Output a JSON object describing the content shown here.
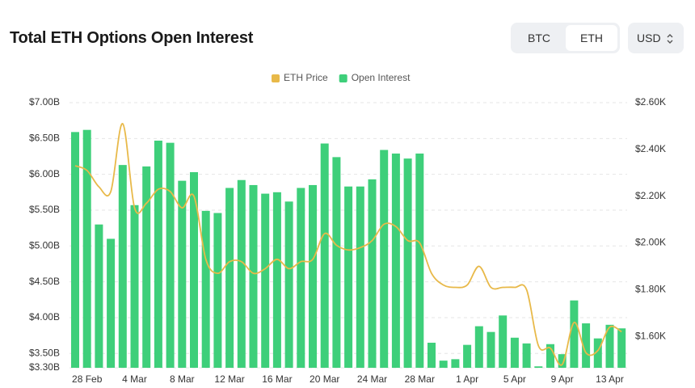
{
  "controls": {
    "assets": [
      "BTC",
      "ETH"
    ],
    "currency": "USD"
  },
  "chart_data": {
    "type": "combo",
    "title": "Total ETH Options Open Interest",
    "categories": [
      null,
      "28 Feb",
      null,
      null,
      null,
      "4 Mar",
      null,
      null,
      null,
      "8 Mar",
      null,
      null,
      null,
      "12 Mar",
      null,
      null,
      null,
      "16 Mar",
      null,
      null,
      null,
      "20 Mar",
      null,
      null,
      null,
      "24 Mar",
      null,
      null,
      null,
      "28 Mar",
      null,
      null,
      null,
      "1 Apr",
      null,
      null,
      null,
      "5 Apr",
      null,
      null,
      null,
      "9 Apr",
      null,
      null,
      null,
      "13 Apr",
      null
    ],
    "series": [
      {
        "name": "ETH Price",
        "type": "line",
        "axis": "y2",
        "color": "#e8b949",
        "values": [
          2.33,
          2.31,
          2.24,
          2.22,
          2.51,
          2.15,
          2.17,
          2.23,
          2.22,
          2.15,
          2.2,
          1.93,
          1.87,
          1.92,
          1.92,
          1.87,
          1.89,
          1.93,
          1.89,
          1.92,
          1.93,
          2.04,
          1.99,
          1.97,
          1.98,
          2.01,
          2.08,
          2.07,
          2.01,
          2.0,
          1.87,
          1.82,
          1.81,
          1.82,
          1.9,
          1.81,
          1.81,
          1.81,
          1.8,
          1.56,
          1.55,
          1.48,
          1.66,
          1.53,
          1.54,
          1.64,
          1.62
        ]
      },
      {
        "name": "Open Interest",
        "type": "bar",
        "axis": "y",
        "color": "#3ecf7a",
        "values": [
          6.59,
          6.62,
          5.3,
          5.1,
          6.13,
          5.57,
          6.11,
          6.47,
          6.44,
          5.91,
          6.03,
          5.49,
          5.46,
          5.81,
          5.92,
          5.85,
          5.73,
          5.75,
          5.62,
          5.81,
          5.85,
          6.43,
          6.24,
          5.83,
          5.83,
          5.93,
          6.34,
          6.29,
          6.22,
          6.29,
          3.65,
          3.4,
          3.42,
          3.62,
          3.88,
          3.8,
          4.03,
          3.72,
          3.64,
          3.32,
          3.63,
          3.49,
          4.24,
          3.92,
          3.71,
          3.9,
          3.85
        ]
      }
    ],
    "ylim": [
      3.3,
      7.0
    ],
    "yticks": [
      {
        "value": 3.3,
        "label": "$3.30B"
      },
      {
        "value": 3.5,
        "label": "$3.50B"
      },
      {
        "value": 4.0,
        "label": "$4.00B"
      },
      {
        "value": 4.5,
        "label": "$4.50B"
      },
      {
        "value": 5.0,
        "label": "$5.00B"
      },
      {
        "value": 5.5,
        "label": "$5.50B"
      },
      {
        "value": 6.0,
        "label": "$6.00B"
      },
      {
        "value": 6.5,
        "label": "$6.50B"
      },
      {
        "value": 7.0,
        "label": "$7.00B"
      }
    ],
    "y2lim": [
      1.466,
      2.6
    ],
    "y2ticks": [
      {
        "value": 1.6,
        "label": "$1.60K"
      },
      {
        "value": 1.8,
        "label": "$1.80K"
      },
      {
        "value": 2.0,
        "label": "$2.00K"
      },
      {
        "value": 2.2,
        "label": "$2.20K"
      },
      {
        "value": 2.4,
        "label": "$2.40K"
      },
      {
        "value": 2.6,
        "label": "$2.60K"
      }
    ],
    "grid": true,
    "legend": "top"
  }
}
